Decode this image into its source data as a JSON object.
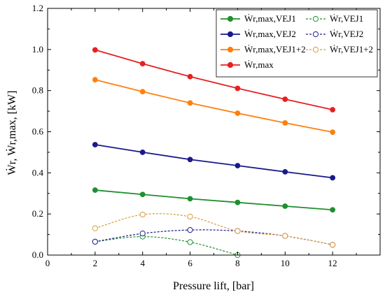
{
  "chart_data": {
    "type": "line",
    "xlabel": "Pressure lift, [bar]",
    "ylabel": "Ẇr, Ẇr,max, [kW]",
    "xlim": [
      0,
      14
    ],
    "ylim": [
      0.0,
      1.2
    ],
    "xticks": [
      "0",
      "2",
      "4",
      "6",
      "8",
      "10",
      "12"
    ],
    "yticks": [
      "0.0",
      "0.2",
      "0.4",
      "0.6",
      "0.8",
      "1.0",
      "1.2"
    ],
    "grid": false,
    "legend_position": "top-right",
    "series": [
      {
        "name": "Ẇr,max,VEJ1",
        "color": "#1f8f2f",
        "style": "solid",
        "marker": "filled",
        "x": [
          2,
          4,
          6,
          8,
          10,
          12
        ],
        "y": [
          0.316,
          0.295,
          0.274,
          0.256,
          0.238,
          0.22
        ]
      },
      {
        "name": "Ẇr,max,VEJ2",
        "color": "#1a1a8c",
        "style": "solid",
        "marker": "filled",
        "x": [
          2,
          4,
          6,
          8,
          10,
          12
        ],
        "y": [
          0.537,
          0.5,
          0.465,
          0.435,
          0.405,
          0.376
        ]
      },
      {
        "name": "Ẇr,max,VEJ1+2",
        "color": "#ff7f0e",
        "style": "solid",
        "marker": "filled",
        "x": [
          2,
          4,
          6,
          8,
          10,
          12
        ],
        "y": [
          0.853,
          0.795,
          0.74,
          0.69,
          0.643,
          0.598
        ]
      },
      {
        "name": "Ẇr,max",
        "color": "#e62020",
        "style": "solid",
        "marker": "filled",
        "x": [
          2,
          4,
          6,
          8,
          10,
          12
        ],
        "y": [
          0.998,
          0.931,
          0.868,
          0.811,
          0.758,
          0.707
        ]
      },
      {
        "name": "Ẇr,VEJ1",
        "color": "#1f8f2f",
        "style": "dashed",
        "marker": "open",
        "x": [
          2,
          4,
          6,
          8
        ],
        "y": [
          0.065,
          0.09,
          0.063,
          0.0
        ]
      },
      {
        "name": "Ẇr,VEJ2",
        "color": "#1a1a8c",
        "style": "dashed",
        "marker": "open",
        "x": [
          2,
          4,
          6,
          8,
          10,
          12
        ],
        "y": [
          0.065,
          0.105,
          0.122,
          0.117,
          0.093,
          0.05
        ]
      },
      {
        "name": "Ẇr,VEJ1+2",
        "color": "#d99a3a",
        "style": "dashed",
        "marker": "open",
        "x": [
          2,
          4,
          6,
          8,
          10,
          12
        ],
        "y": [
          0.13,
          0.197,
          0.187,
          0.117,
          0.093,
          0.05
        ]
      }
    ]
  }
}
